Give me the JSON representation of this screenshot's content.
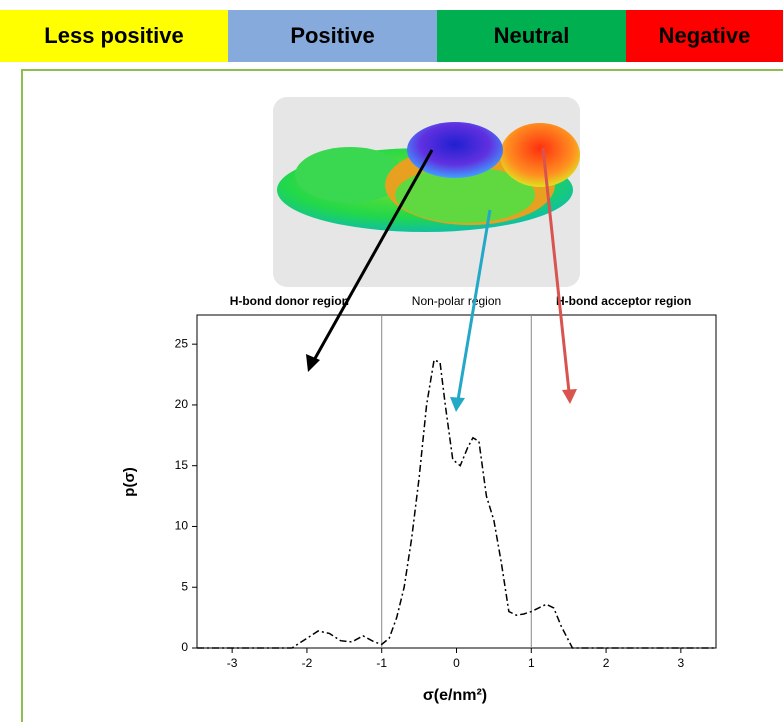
{
  "chart_data": {
    "type": "line",
    "color_scale": [
      {
        "label": "Less positive",
        "color": "#ffff00"
      },
      {
        "label": "Positive",
        "color": "#86aadc"
      },
      {
        "label": "Neutral",
        "color": "#00b050"
      },
      {
        "label": "Negative",
        "color": "#ff0000"
      }
    ],
    "regions": [
      "H-bond donor region",
      "Non-polar region",
      "H-bond acceptor region"
    ],
    "region_bounds": [
      -1,
      1
    ],
    "xlabel": "σ(e/nm²)",
    "ylabel": "p(σ)",
    "x": [
      -3.47,
      -2.2,
      -2.0,
      -1.85,
      -1.7,
      -1.55,
      -1.4,
      -1.25,
      -1.1,
      -1.0,
      -0.9,
      -0.8,
      -0.7,
      -0.6,
      -0.5,
      -0.4,
      -0.3,
      -0.22,
      -0.15,
      -0.05,
      0.05,
      0.15,
      0.22,
      0.3,
      0.4,
      0.5,
      0.6,
      0.7,
      0.8,
      0.9,
      1.0,
      1.1,
      1.2,
      1.3,
      1.4,
      1.55,
      3.47
    ],
    "series": [
      {
        "color": "#000000",
        "values": [
          0,
          0,
          0.8,
          1.4,
          1.2,
          0.6,
          0.5,
          1.0,
          0.5,
          0.3,
          0.8,
          2.5,
          5,
          9,
          14,
          20,
          23.7,
          23.5,
          20,
          15.5,
          15,
          16.5,
          17.3,
          17,
          12.5,
          10.5,
          7,
          3,
          2.7,
          2.8,
          3.0,
          3.3,
          3.6,
          3.3,
          1.8,
          0,
          0
        ]
      }
    ],
    "xlim": [
      -3.47,
      3.47
    ],
    "ylim": [
      0,
      27.4
    ],
    "xticks": [
      -3,
      -2,
      -1,
      0,
      1,
      2,
      3
    ],
    "yticks": [
      0,
      5,
      10,
      15,
      20,
      25
    ]
  }
}
